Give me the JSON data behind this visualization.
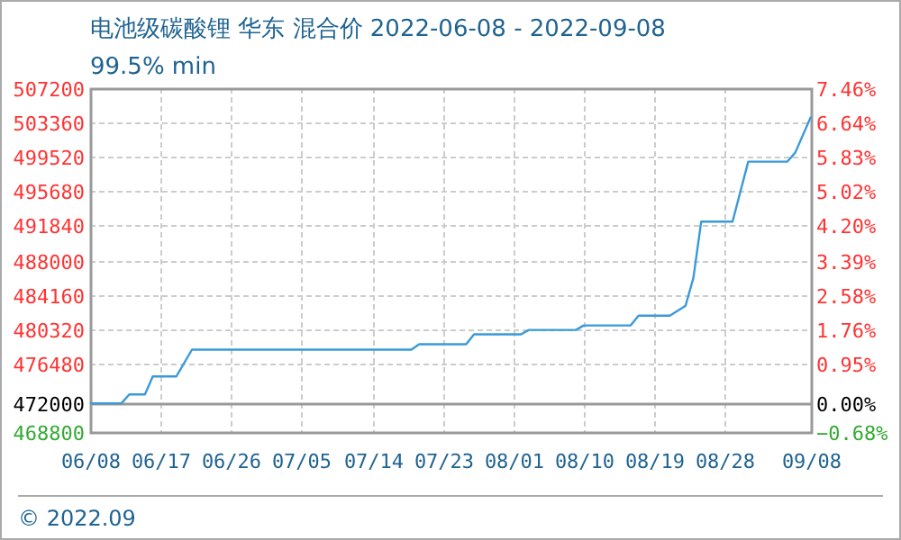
{
  "chart_data": {
    "type": "line",
    "title": "电池级碳酸锂 华东 混合价 2022-06-08 - 2022-09-08",
    "subtitle": "99.5% min",
    "annotations": [
      "© 2022.09"
    ],
    "series": [
      {
        "color": "#3a9ad9",
        "x": [
          "2022-06-08",
          "2022-06-12",
          "2022-06-13",
          "2022-06-15",
          "2022-06-16",
          "2022-06-19",
          "2022-06-21",
          "2022-07-19",
          "2022-07-20",
          "2022-07-26",
          "2022-07-27",
          "2022-08-02",
          "2022-08-03",
          "2022-08-09",
          "2022-08-10",
          "2022-08-16",
          "2022-08-17",
          "2022-08-21",
          "2022-08-23",
          "2022-08-24",
          "2022-08-25",
          "2022-08-29",
          "2022-08-31",
          "2022-09-05",
          "2022-09-06",
          "2022-09-08"
        ],
        "values": [
          472000,
          472000,
          473000,
          473000,
          475000,
          475000,
          478000,
          478000,
          478600,
          478600,
          479700,
          479700,
          480200,
          480200,
          480700,
          480700,
          481800,
          481800,
          482900,
          486000,
          492300,
          492300,
          499000,
          499000,
          500000,
          504000
        ]
      }
    ],
    "xlim": [
      "2022-06-08",
      "2022-09-08"
    ],
    "xticks": [
      {
        "value": "2022-06-08",
        "label": "06/08"
      },
      {
        "value": "2022-06-17",
        "label": "06/17"
      },
      {
        "value": "2022-06-26",
        "label": "06/26"
      },
      {
        "value": "2022-07-05",
        "label": "07/05"
      },
      {
        "value": "2022-07-14",
        "label": "07/14"
      },
      {
        "value": "2022-07-23",
        "label": "07/23"
      },
      {
        "value": "2022-08-01",
        "label": "08/01"
      },
      {
        "value": "2022-08-10",
        "label": "08/10"
      },
      {
        "value": "2022-08-19",
        "label": "08/19"
      },
      {
        "value": "2022-08-28",
        "label": "08/28"
      },
      {
        "value": "2022-09-08",
        "label": "09/08"
      }
    ],
    "ylim": [
      468800,
      507200
    ],
    "yticks": [
      468800,
      472000,
      476480,
      480320,
      484160,
      488000,
      491840,
      495680,
      499520,
      503360,
      507200
    ],
    "y2lim": [
      -0.68,
      7.46
    ],
    "y2ticks": [
      {
        "value": -0.68,
        "label": "−0.68%"
      },
      {
        "value": 0,
        "label": "0.00%"
      },
      {
        "value": 0.95,
        "label": "0.95%"
      },
      {
        "value": 1.76,
        "label": "1.76%"
      },
      {
        "value": 2.58,
        "label": "2.58%"
      },
      {
        "value": 3.39,
        "label": "3.39%"
      },
      {
        "value": 4.2,
        "label": "4.20%"
      },
      {
        "value": 5.02,
        "label": "5.02%"
      },
      {
        "value": 5.83,
        "label": "5.83%"
      },
      {
        "value": 6.64,
        "label": "6.64%"
      },
      {
        "value": 7.46,
        "label": "7.46%"
      }
    ],
    "ref_lines": [
      {
        "axis": "y",
        "value": 472000,
        "color": "#999999"
      }
    ],
    "grid": true,
    "marker": "none",
    "line_style": "solid"
  }
}
